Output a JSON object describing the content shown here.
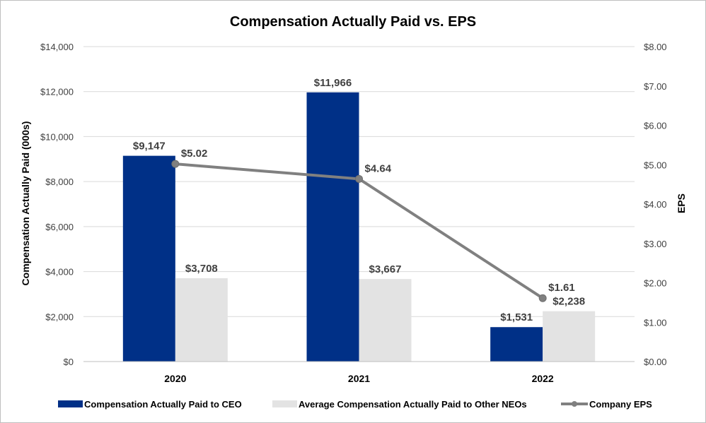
{
  "chart_data": {
    "type": "bar",
    "title": "Compensation Actually Paid vs. EPS",
    "categories": [
      "2020",
      "2021",
      "2022"
    ],
    "ylabel": "Compensation Actually Paid (000s)",
    "y2label": "EPS",
    "ylim": [
      0,
      14000
    ],
    "y2lim": [
      0,
      8
    ],
    "yticks": [
      "$0",
      "$2,000",
      "$4,000",
      "$6,000",
      "$8,000",
      "$10,000",
      "$12,000",
      "$14,000"
    ],
    "y2ticks": [
      "$0.00",
      "$1.00",
      "$2.00",
      "$3.00",
      "$4.00",
      "$5.00",
      "$6.00",
      "$7.00",
      "$8.00"
    ],
    "grid": true,
    "legend_position": "bottom",
    "series": [
      {
        "name": "Compensation Actually Paid to CEO",
        "type": "bar",
        "axis": "left",
        "color": "#003087",
        "values": [
          9147,
          11966,
          1531
        ],
        "labels": [
          "$9,147",
          "$11,966",
          "$1,531"
        ]
      },
      {
        "name": "Average Compensation Actually Paid to Other NEOs",
        "type": "bar",
        "axis": "left",
        "color": "#e3e3e3",
        "values": [
          3708,
          3667,
          2238
        ],
        "labels": [
          "$3,708",
          "$3,667",
          "$2,238"
        ]
      },
      {
        "name": "Company EPS",
        "type": "line",
        "axis": "right",
        "color": "#808080",
        "values": [
          5.02,
          4.64,
          1.61
        ],
        "labels": [
          "$5.02",
          "$4.64",
          "$1.61"
        ]
      }
    ]
  }
}
